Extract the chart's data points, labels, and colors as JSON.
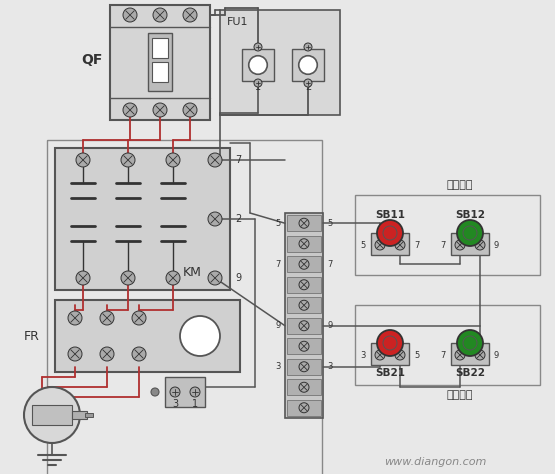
{
  "bg_color": "#e8e8e8",
  "line_color": "#555555",
  "red_line_color": "#b03030",
  "box_border": "#666666",
  "labels": {
    "QF": "QF",
    "FU1": "FU1",
    "KM": "KM",
    "FR": "FR",
    "SB11": "SB11",
    "SB12": "SB12",
    "SB21": "SB21",
    "SB22": "SB22",
    "jia": "甲地控制",
    "yi": "乙地控制",
    "watermark": "www.diangon.com"
  },
  "red_btn": "#cc2222",
  "green_btn": "#228822",
  "dark": "#333333",
  "lgray": "#c0c0c0",
  "mgray": "#999999",
  "white": "#ffffff",
  "screw_fill": "#aaaaaa"
}
